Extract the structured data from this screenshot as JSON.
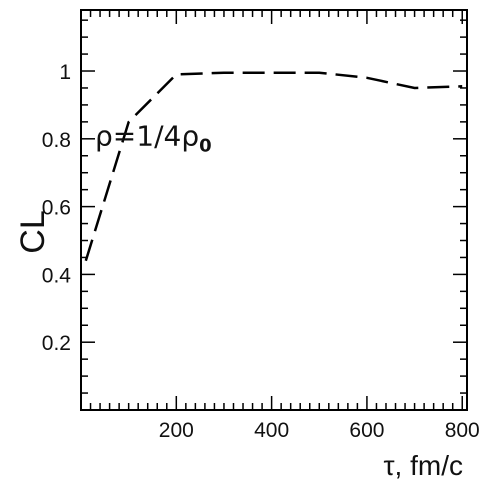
{
  "chart_data": {
    "type": "line",
    "title": "",
    "xlabel": "τ, fm/c",
    "ylabel": "CL",
    "xlim": [
      0,
      810
    ],
    "ylim": [
      0,
      1.18
    ],
    "x_ticks": [
      200,
      400,
      600,
      800
    ],
    "x_tick_labels": [
      "200",
      "400",
      "600",
      "800"
    ],
    "y_ticks": [
      0.2,
      0.4,
      0.6,
      0.8,
      1.0
    ],
    "y_tick_labels": [
      "0.2",
      "0.4",
      "0.6",
      "0.8",
      "1"
    ],
    "grid": false,
    "legend": "none",
    "line_style": "dashed",
    "line_color": "#000000",
    "series": [
      {
        "x": [
          10,
          100,
          200,
          300,
          400,
          500,
          600,
          700,
          800
        ],
        "y": [
          0.44,
          0.85,
          0.99,
          0.995,
          0.995,
          0.995,
          0.98,
          0.95,
          0.955
        ]
      }
    ],
    "annotations": [
      {
        "text_main": "ρ=1/4ρ",
        "text_sub": "0",
        "x": 340,
        "y": 0.81
      }
    ]
  }
}
